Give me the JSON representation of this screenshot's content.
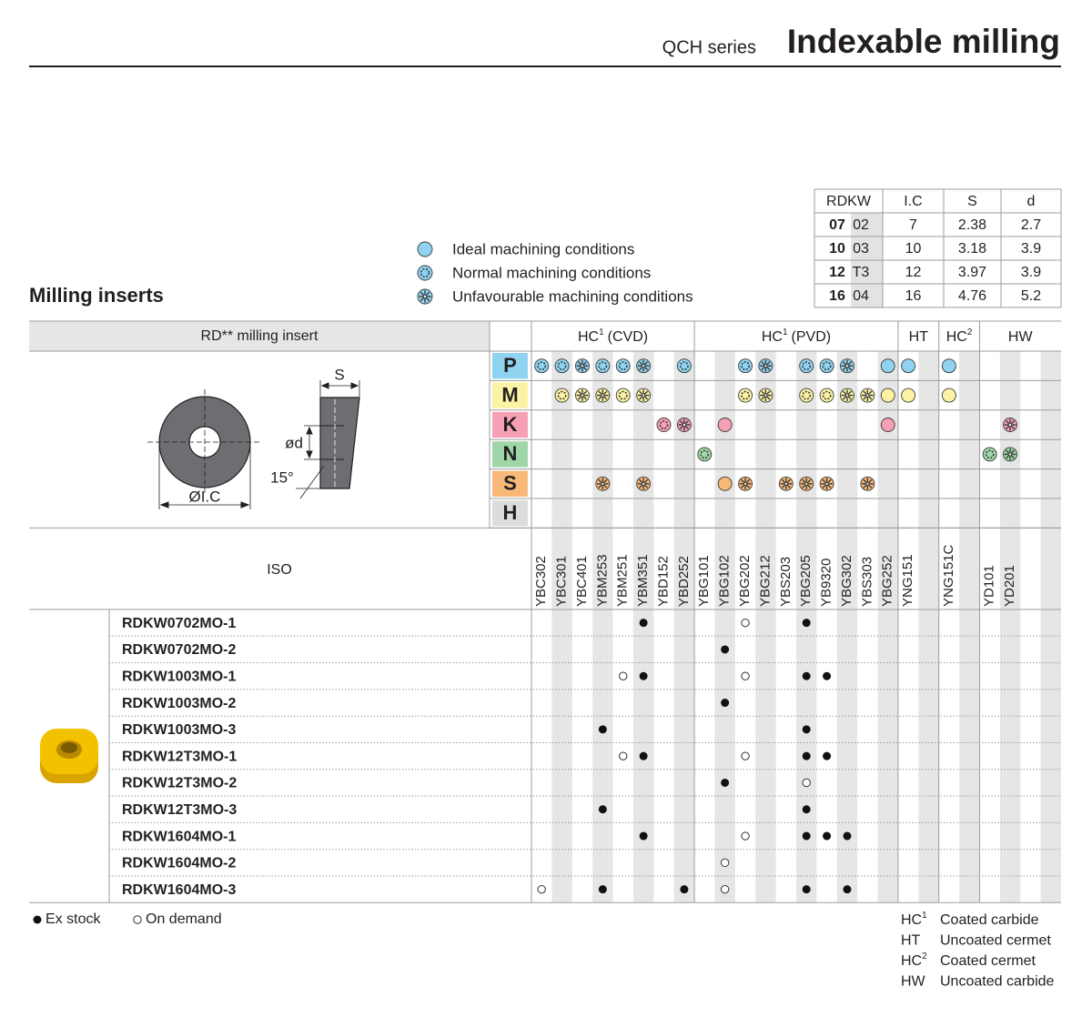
{
  "header": {
    "series": "QCH series",
    "title": "Indexable milling"
  },
  "dimensions": {
    "headers": [
      "RDKW",
      "I.C",
      "S",
      "d"
    ],
    "rows": [
      [
        "07",
        "02",
        7,
        2.38,
        2.7
      ],
      [
        "10",
        "03",
        10,
        3.18,
        3.9
      ],
      [
        "12",
        "T3",
        12,
        3.97,
        3.9
      ],
      [
        "16",
        "04",
        16,
        4.76,
        5.2
      ]
    ]
  },
  "legend_color": "#8fd3f0",
  "legend": [
    {
      "symbol": 1,
      "label": "Ideal machining conditions"
    },
    {
      "symbol": 2,
      "label": "Normal machining conditions"
    },
    {
      "symbol": 3,
      "label": "Unfavourable machining conditions"
    }
  ],
  "section_title": "Milling inserts",
  "diagram": {
    "s": "S",
    "d": "ød",
    "angle": "15°",
    "ic": "ØI.C"
  },
  "table": {
    "insert_header": "RD** milling insert",
    "iso_label": "ISO",
    "groups": [
      {
        "name": "HC",
        "sup": "1",
        "suffix": "(CVD)",
        "grades": [
          "YBC302",
          "YBC301",
          "YBC401",
          "YBM253",
          "YBM251",
          "YBM351",
          "YBD152",
          "YBD252"
        ]
      },
      {
        "name": "HC",
        "sup": "1",
        "suffix": "(PVD)",
        "grades": [
          "YBG101",
          "YBG102",
          "YBG202",
          "YBG212",
          "YBS203",
          "YBG205",
          "YB9320",
          "YBG302",
          "YBS303",
          "YBG252"
        ]
      },
      {
        "name": "HT",
        "grades": [
          "YNG151",
          null
        ]
      },
      {
        "name": "HC",
        "sup": "2",
        "grades": [
          "YNG151C",
          null
        ]
      },
      {
        "name": "HW",
        "grades": [
          "YD101",
          "YD201",
          null,
          null
        ]
      }
    ],
    "materials": [
      {
        "letter": "P",
        "color": "#8fd3f0",
        "symbols": [
          2,
          2,
          3,
          2,
          2,
          3,
          0,
          2,
          0,
          0,
          2,
          3,
          0,
          2,
          2,
          3,
          0,
          1,
          1,
          0,
          1,
          0,
          0,
          0,
          0,
          0
        ]
      },
      {
        "letter": "M",
        "color": "#fbf3a3",
        "symbols": [
          0,
          2,
          3,
          3,
          2,
          3,
          0,
          0,
          0,
          0,
          2,
          3,
          0,
          2,
          2,
          3,
          3,
          1,
          1,
          0,
          1,
          0,
          0,
          0,
          0,
          0
        ]
      },
      {
        "letter": "K",
        "color": "#f5a0b5",
        "symbols": [
          0,
          0,
          0,
          0,
          0,
          0,
          2,
          3,
          0,
          1,
          0,
          0,
          0,
          0,
          0,
          0,
          0,
          1,
          0,
          0,
          0,
          0,
          0,
          3,
          0,
          0
        ]
      },
      {
        "letter": "N",
        "color": "#9fd6a8",
        "symbols": [
          0,
          0,
          0,
          0,
          0,
          0,
          0,
          0,
          2,
          0,
          0,
          0,
          0,
          0,
          0,
          0,
          0,
          0,
          0,
          0,
          0,
          0,
          2,
          3,
          0,
          0
        ]
      },
      {
        "letter": "S",
        "color": "#f7b878",
        "symbols": [
          0,
          0,
          0,
          3,
          0,
          3,
          0,
          0,
          0,
          1,
          3,
          0,
          3,
          3,
          3,
          0,
          3,
          0,
          0,
          0,
          0,
          0,
          0,
          0,
          0,
          0
        ]
      },
      {
        "letter": "H",
        "color": "#dcdcdc",
        "symbols": [
          0,
          0,
          0,
          0,
          0,
          0,
          0,
          0,
          0,
          0,
          0,
          0,
          0,
          0,
          0,
          0,
          0,
          0,
          0,
          0,
          0,
          0,
          0,
          0,
          0,
          0
        ]
      }
    ],
    "products": [
      {
        "name": "RDKW0702MO-1",
        "availability": [
          0,
          0,
          0,
          0,
          0,
          1,
          0,
          0,
          0,
          0,
          2,
          0,
          0,
          1,
          0,
          0,
          0,
          0,
          0,
          0,
          0,
          0,
          0,
          0,
          0,
          0
        ]
      },
      {
        "name": "RDKW0702MO-2",
        "availability": [
          0,
          0,
          0,
          0,
          0,
          0,
          0,
          0,
          0,
          1,
          0,
          0,
          0,
          0,
          0,
          0,
          0,
          0,
          0,
          0,
          0,
          0,
          0,
          0,
          0,
          0
        ]
      },
      {
        "name": "RDKW1003MO-1",
        "availability": [
          0,
          0,
          0,
          0,
          2,
          1,
          0,
          0,
          0,
          0,
          2,
          0,
          0,
          1,
          1,
          0,
          0,
          0,
          0,
          0,
          0,
          0,
          0,
          0,
          0,
          0
        ]
      },
      {
        "name": "RDKW1003MO-2",
        "availability": [
          0,
          0,
          0,
          0,
          0,
          0,
          0,
          0,
          0,
          1,
          0,
          0,
          0,
          0,
          0,
          0,
          0,
          0,
          0,
          0,
          0,
          0,
          0,
          0,
          0,
          0
        ]
      },
      {
        "name": "RDKW1003MO-3",
        "availability": [
          0,
          0,
          0,
          1,
          0,
          0,
          0,
          0,
          0,
          0,
          0,
          0,
          0,
          1,
          0,
          0,
          0,
          0,
          0,
          0,
          0,
          0,
          0,
          0,
          0,
          0
        ]
      },
      {
        "name": "RDKW12T3MO-1",
        "availability": [
          0,
          0,
          0,
          0,
          2,
          1,
          0,
          0,
          0,
          0,
          2,
          0,
          0,
          1,
          1,
          0,
          0,
          0,
          0,
          0,
          0,
          0,
          0,
          0,
          0,
          0
        ]
      },
      {
        "name": "RDKW12T3MO-2",
        "availability": [
          0,
          0,
          0,
          0,
          0,
          0,
          0,
          0,
          0,
          1,
          0,
          0,
          0,
          2,
          0,
          0,
          0,
          0,
          0,
          0,
          0,
          0,
          0,
          0,
          0,
          0
        ]
      },
      {
        "name": "RDKW12T3MO-3",
        "availability": [
          0,
          0,
          0,
          1,
          0,
          0,
          0,
          0,
          0,
          0,
          0,
          0,
          0,
          1,
          0,
          0,
          0,
          0,
          0,
          0,
          0,
          0,
          0,
          0,
          0,
          0
        ]
      },
      {
        "name": "RDKW1604MO-1",
        "availability": [
          0,
          0,
          0,
          0,
          0,
          1,
          0,
          0,
          0,
          0,
          2,
          0,
          0,
          1,
          1,
          1,
          0,
          0,
          0,
          0,
          0,
          0,
          0,
          0,
          0,
          0
        ]
      },
      {
        "name": "RDKW1604MO-2",
        "availability": [
          0,
          0,
          0,
          0,
          0,
          0,
          0,
          0,
          0,
          2,
          0,
          0,
          0,
          0,
          0,
          0,
          0,
          0,
          0,
          0,
          0,
          0,
          0,
          0,
          0,
          0
        ]
      },
      {
        "name": "RDKW1604MO-3",
        "availability": [
          2,
          0,
          0,
          1,
          0,
          0,
          0,
          1,
          0,
          2,
          0,
          0,
          0,
          1,
          0,
          1,
          0,
          0,
          0,
          0,
          0,
          0,
          0,
          0,
          0,
          0
        ]
      }
    ]
  },
  "availability_key": [
    {
      "symbol": 1,
      "label": "Ex stock"
    },
    {
      "symbol": 2,
      "label": "On demand"
    }
  ],
  "abbreviations": [
    {
      "code": "HC",
      "sup": "1",
      "meaning": "Coated carbide"
    },
    {
      "code": "HT",
      "meaning": "Uncoated cermet"
    },
    {
      "code": "HC",
      "sup": "2",
      "meaning": "Coated cermet"
    },
    {
      "code": "HW",
      "meaning": "Uncoated carbide"
    }
  ]
}
